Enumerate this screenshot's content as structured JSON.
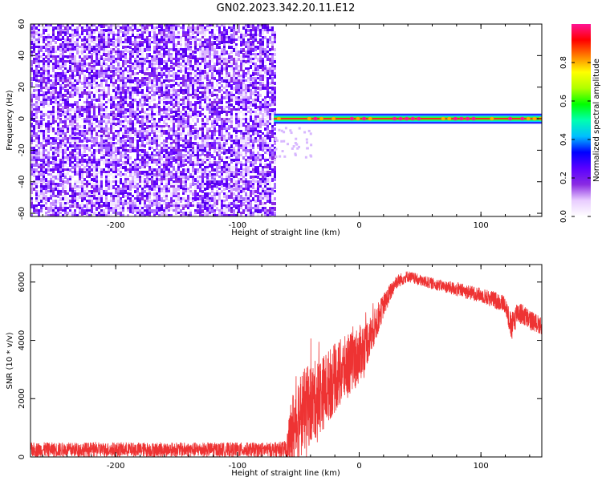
{
  "title": "GN02.2023.342.20.11.E12",
  "colorbar": {
    "label": "Normalized spectral amplitude",
    "range": [
      0,
      1
    ],
    "ticks": [
      "0.0",
      "0.2",
      "0.4",
      "0.6",
      "0.8"
    ],
    "tick_values": [
      0.0,
      0.2,
      0.4,
      0.6,
      0.8
    ],
    "colormap": [
      "#ffffff",
      "#e8ccff",
      "#8a2be2",
      "#5a00ff",
      "#0000ff",
      "#00bfff",
      "#00ffb0",
      "#00ff00",
      "#b0ff00",
      "#ffff00",
      "#ff8000",
      "#ff0000",
      "#ff1493"
    ]
  },
  "chart_data": [
    {
      "type": "heatmap",
      "title": "GN02.2023.342.20.11.E12",
      "xlabel": "Height of straight line (km)",
      "ylabel": "Frequency (Hz)",
      "xlim": [
        -270,
        150
      ],
      "ylim": [
        -62,
        60
      ],
      "xticks": [
        -200,
        -100,
        0,
        100
      ],
      "yticks": [
        -60,
        -40,
        -20,
        0,
        20,
        40,
        60
      ],
      "regions": [
        {
          "x": [
            -270,
            -70
          ],
          "y": [
            -62,
            60
          ],
          "description": "broadband noise",
          "amplitude": [
            0.0,
            0.15
          ]
        },
        {
          "x": [
            -70,
            150
          ],
          "y": [
            -3,
            3
          ],
          "description": "narrow band near 0 Hz",
          "amplitude": [
            0.7,
            1.0
          ]
        }
      ]
    },
    {
      "type": "line",
      "xlabel": "Height of straight line (km)",
      "ylabel": "SNR (10 * v/v)",
      "xlim": [
        -270,
        150
      ],
      "ylim": [
        0,
        6600
      ],
      "xticks": [
        -200,
        -100,
        0,
        100
      ],
      "yticks": [
        0,
        2000,
        4000,
        6000
      ],
      "color": "#ee3333",
      "x": [
        -270,
        -200,
        -120,
        -70,
        -60,
        -55,
        -50,
        -40,
        -30,
        -20,
        -10,
        0,
        10,
        20,
        30,
        40,
        50,
        60,
        70,
        80,
        90,
        100,
        110,
        120,
        125,
        130,
        140,
        150
      ],
      "y": [
        250,
        250,
        250,
        250,
        260,
        800,
        1400,
        1800,
        2200,
        2700,
        3100,
        3500,
        4200,
        5200,
        6000,
        6200,
        6050,
        5950,
        5850,
        5750,
        5650,
        5550,
        5400,
        5250,
        4400,
        5000,
        4700,
        4500
      ],
      "noise_amplitude": [
        250,
        250,
        250,
        250,
        300,
        1400,
        1500,
        1400,
        1300,
        1200,
        1100,
        1000,
        700,
        400,
        250,
        200,
        200,
        200,
        200,
        250,
        250,
        250,
        300,
        300,
        500,
        400,
        350,
        300
      ]
    }
  ]
}
